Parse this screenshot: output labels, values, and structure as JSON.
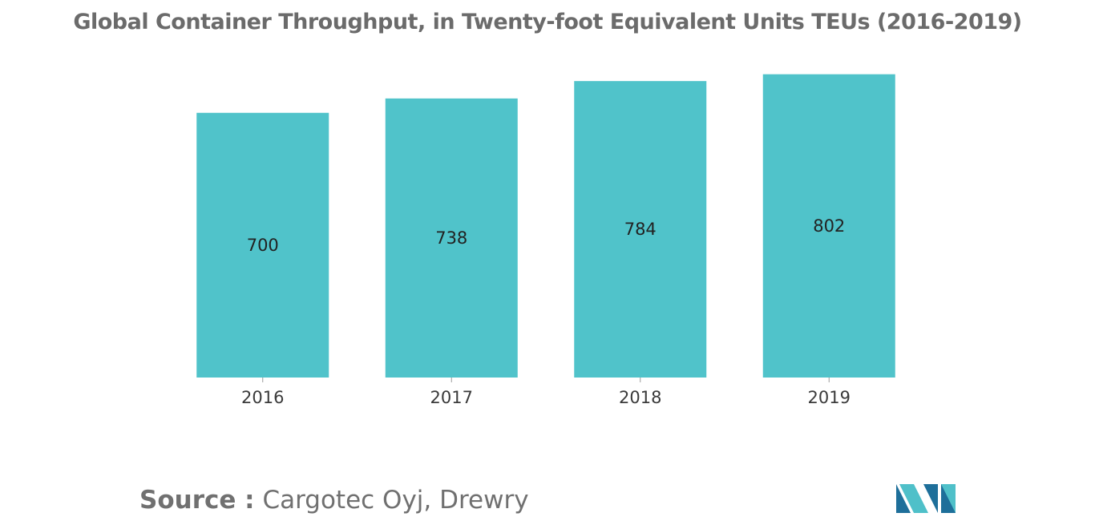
{
  "chart_data": {
    "type": "bar",
    "title": "Global Container Throughput, in Twenty-foot Equivalent Units TEUs (2016-2019)",
    "categories": [
      "2016",
      "2017",
      "2018",
      "2019"
    ],
    "values": [
      700,
      738,
      784,
      802
    ],
    "value_labels": [
      "700",
      "738",
      "784",
      "802"
    ],
    "xlabel": "",
    "ylabel": "",
    "ylim": [
      0,
      850
    ],
    "grid": false,
    "legend": "none",
    "bar_color": "#50c3ca"
  },
  "source": {
    "label": "Source :",
    "value": "Cargotec Oyj, Drewry"
  },
  "logo": {
    "icon": "mordor-intelligence-logo-icon",
    "colors": [
      "#1e6f9a",
      "#4fc0c9"
    ]
  }
}
